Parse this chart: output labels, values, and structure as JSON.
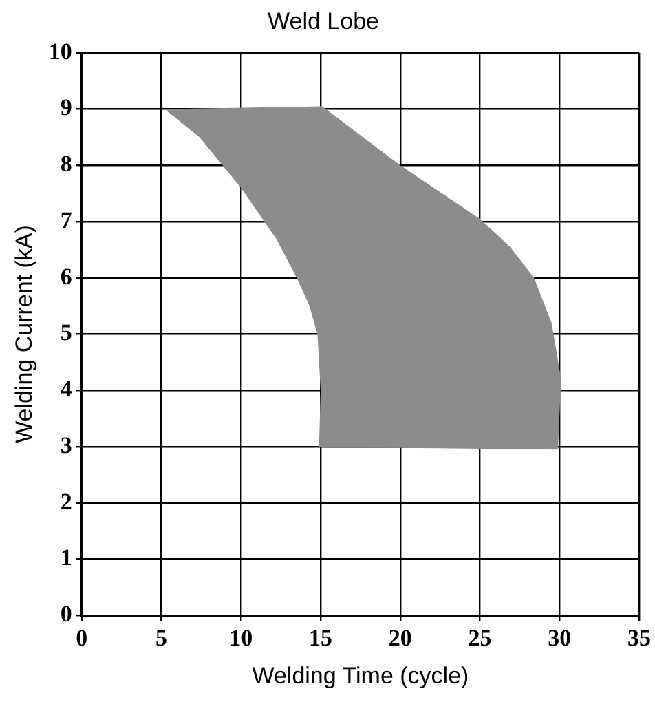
{
  "chart_data": {
    "type": "area",
    "title": "Weld Lobe",
    "xlabel": "Welding Time (cycle)",
    "ylabel": "Welding Current (kA)",
    "xlim": [
      0,
      35
    ],
    "xticks": [
      0,
      5,
      10,
      15,
      20,
      25,
      30,
      35
    ],
    "ylim": [
      0,
      10
    ],
    "yticks": [
      0,
      1,
      2,
      3,
      4,
      5,
      6,
      7,
      8,
      9,
      10
    ],
    "grid": true,
    "legend": false,
    "series": [
      {
        "color": "#8c8c8c",
        "x": [
          5.2,
          15.1,
          20,
          25,
          26.9,
          28.4,
          29.5,
          30.1,
          29.9,
          14.9,
          15,
          14.8,
          14.3,
          13.5,
          12.2,
          10,
          7.4,
          5.2
        ],
        "values": [
          9,
          9.05,
          8,
          7.05,
          6.55,
          6,
          5.2,
          4.2,
          2.95,
          3,
          4,
          5,
          5.5,
          6,
          6.7,
          7.6,
          8.5,
          9
        ]
      }
    ]
  }
}
